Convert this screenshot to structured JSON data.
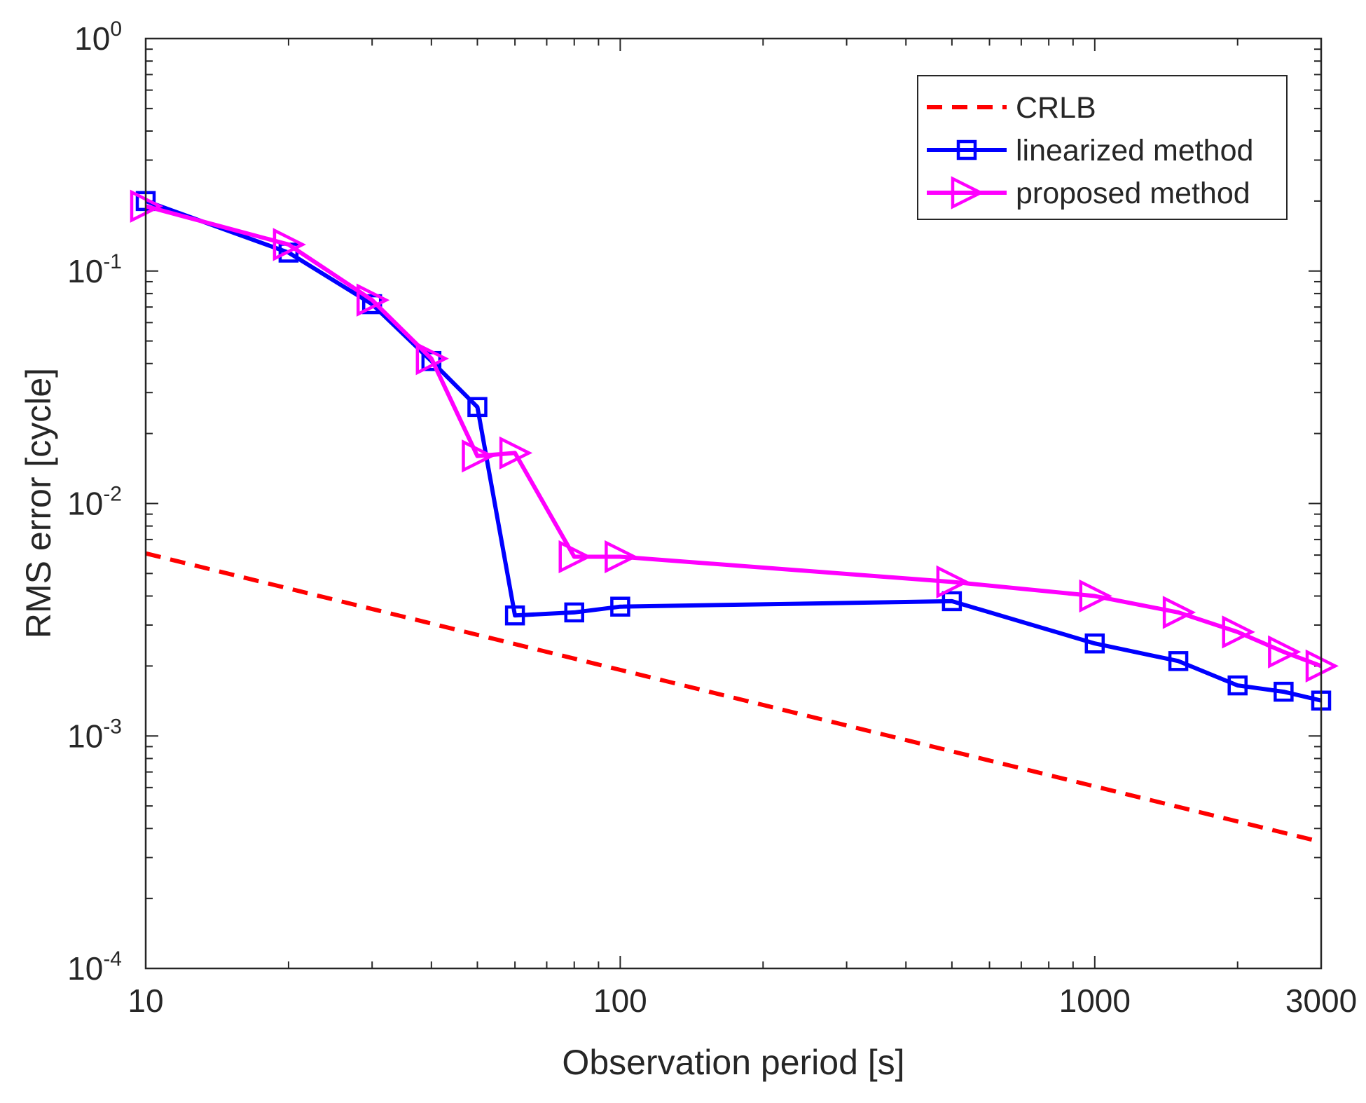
{
  "chart_data": {
    "type": "line",
    "title": "",
    "xlabel": "Observation period [s]",
    "ylabel": "RMS error [cycle]",
    "xscale": "log",
    "yscale": "log",
    "xlim": [
      10,
      3000
    ],
    "ylim": [
      0.0001,
      1
    ],
    "grid": false,
    "legend_position": "top-right",
    "xticks": [
      {
        "value": 10,
        "label": "10"
      },
      {
        "value": 100,
        "label": "100"
      },
      {
        "value": 1000,
        "label": "1000"
      },
      {
        "value": 3000,
        "label": "3000"
      }
    ],
    "yticks": [
      {
        "value": 1,
        "base": "10",
        "exp": "0"
      },
      {
        "value": 0.1,
        "base": "10",
        "exp": "-1"
      },
      {
        "value": 0.01,
        "base": "10",
        "exp": "-2"
      },
      {
        "value": 0.001,
        "base": "10",
        "exp": "-3"
      },
      {
        "value": 0.0001,
        "base": "10",
        "exp": "-4"
      }
    ],
    "series": [
      {
        "name": "CRLB",
        "color": "#ff0000",
        "style": "dashed",
        "marker": "none",
        "x": [
          10,
          3000
        ],
        "y": [
          0.0061,
          0.00035
        ]
      },
      {
        "name": "linearized method",
        "color": "#0000ff",
        "style": "solid",
        "marker": "square",
        "x": [
          10,
          20,
          30,
          40,
          50,
          60,
          80,
          100,
          500,
          1000,
          1500,
          2000,
          2500,
          3000
        ],
        "y": [
          0.2,
          0.12,
          0.072,
          0.041,
          0.026,
          0.0033,
          0.0034,
          0.0036,
          0.0038,
          0.0025,
          0.0021,
          0.00165,
          0.00155,
          0.00142
        ]
      },
      {
        "name": "proposed method",
        "color": "#ff00ff",
        "style": "solid",
        "marker": "triangle-right",
        "x": [
          10,
          20,
          30,
          40,
          50,
          60,
          80,
          100,
          500,
          1000,
          1500,
          2000,
          2500,
          3000
        ],
        "y": [
          0.19,
          0.13,
          0.075,
          0.042,
          0.016,
          0.0165,
          0.0059,
          0.0059,
          0.0046,
          0.004,
          0.0034,
          0.0028,
          0.0023,
          0.002
        ]
      }
    ]
  }
}
